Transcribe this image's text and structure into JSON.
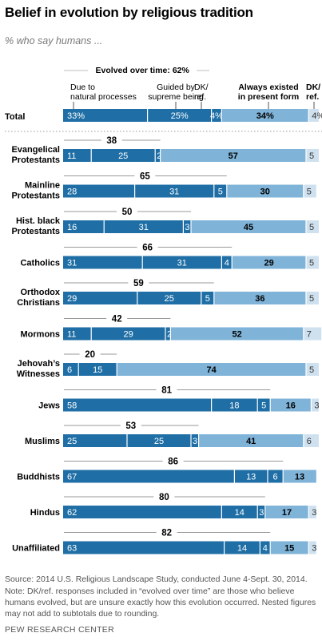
{
  "header": {
    "title": "Belief in evolution by religious tradition",
    "subtitle": "% who say humans ..."
  },
  "footer": {
    "source": "Source: 2014 U.S. Religious Landscape Study, conducted June 4-Sept. 30, 2014.",
    "note": "Note: DK/ref. responses included in “evolved over time” are those who believe humans evolved, but are unsure exactly how this evolution occurred. Nested figures may not add to subtotals due to rounding.",
    "credit": "PEW RESEARCH CENTER"
  },
  "chart_data": {
    "type": "bar",
    "orientation": "horizontal",
    "stacked": true,
    "group_header": "Evolved over time: 62%",
    "column_headers": [
      "Due to natural processes",
      "Guided by supreme being",
      "DK/ ref.",
      "Always existed in present form",
      "DK/ ref."
    ],
    "series_colors": [
      "#1f6fa6",
      "#1f6fa6",
      "#1f6fa6",
      "#7fb3d8",
      "#cfe1ef"
    ],
    "total_row": {
      "label": "Total",
      "values": [
        33,
        25,
        4,
        34,
        4
      ],
      "value_labels": [
        "33%",
        "25%",
        "4%",
        "34%",
        "4%"
      ]
    },
    "rows": [
      {
        "label": "Evangelical Protestants",
        "evolved_total": 38,
        "values": [
          11,
          25,
          2,
          57,
          5
        ]
      },
      {
        "label": "Mainline Protestants",
        "evolved_total": 65,
        "values": [
          28,
          31,
          5,
          30,
          5
        ]
      },
      {
        "label": "Hist. black Protestants",
        "evolved_total": 50,
        "values": [
          16,
          31,
          3,
          45,
          5
        ]
      },
      {
        "label": "Catholics",
        "evolved_total": 66,
        "values": [
          31,
          31,
          4,
          29,
          5
        ]
      },
      {
        "label": "Orthodox Christians",
        "evolved_total": 59,
        "values": [
          29,
          25,
          5,
          36,
          5
        ]
      },
      {
        "label": "Mormons",
        "evolved_total": 42,
        "values": [
          11,
          29,
          2,
          52,
          7
        ]
      },
      {
        "label": "Jehovah’s Witnesses",
        "evolved_total": 20,
        "values": [
          6,
          15,
          null,
          74,
          5
        ]
      },
      {
        "label": "Jews",
        "evolved_total": 81,
        "values": [
          58,
          18,
          5,
          16,
          3
        ]
      },
      {
        "label": "Muslims",
        "evolved_total": 53,
        "values": [
          25,
          25,
          3,
          41,
          6
        ]
      },
      {
        "label": "Buddhists",
        "evolved_total": 86,
        "values": [
          67,
          13,
          6,
          13,
          null
        ]
      },
      {
        "label": "Hindus",
        "evolved_total": 80,
        "values": [
          62,
          14,
          3,
          17,
          3
        ]
      },
      {
        "label": "Unaffiliated",
        "evolved_total": 82,
        "values": [
          63,
          14,
          4,
          15,
          3
        ]
      }
    ]
  }
}
